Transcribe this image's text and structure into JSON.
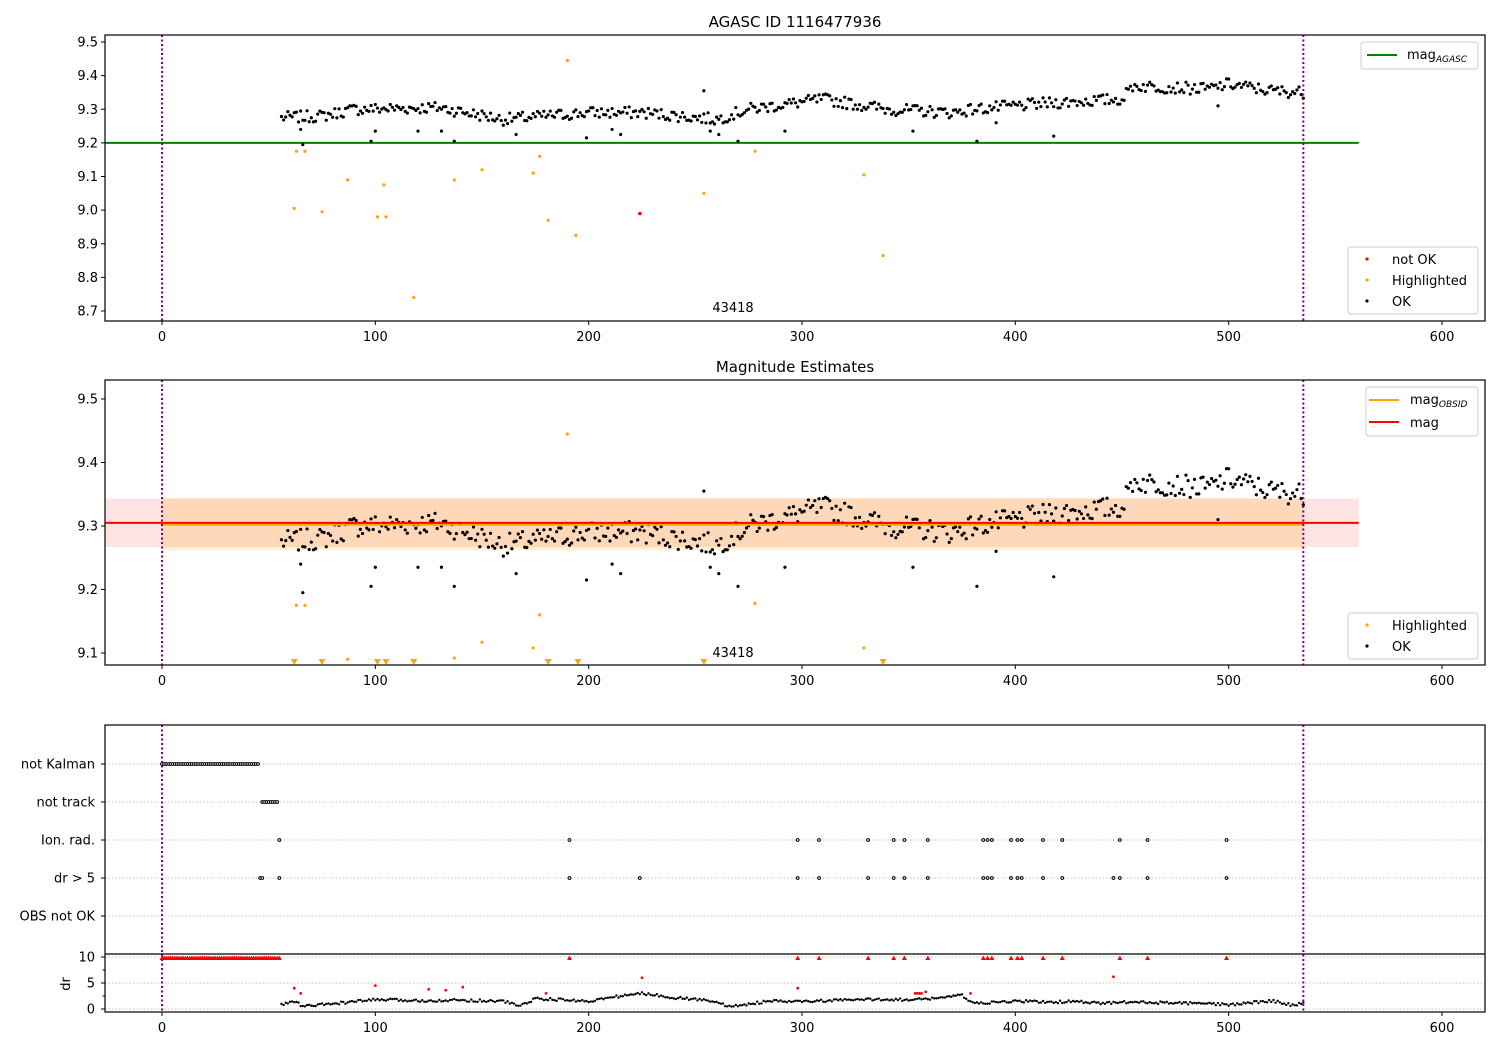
{
  "chart_data": [
    {
      "type": "scatter",
      "title": "AGASC ID 1116477936",
      "xlabel": "",
      "ylabel": "",
      "xlim": [
        -27,
        623
      ],
      "ylim": [
        8.67,
        9.52
      ],
      "xticks": [
        "0",
        "100",
        "200",
        "300",
        "400",
        "500",
        "600"
      ],
      "yticks": [
        "8.7",
        "8.8",
        "8.9",
        "9.0",
        "9.1",
        "9.2",
        "9.3",
        "9.4",
        "9.5"
      ],
      "annotation": "43418",
      "vlines": [
        0,
        535
      ],
      "hline": {
        "name": "mag_AGASC",
        "value": 9.2,
        "color": "#008000"
      },
      "legend_upper": [
        {
          "label": "mag",
          "sub": "AGASC",
          "color": "#008000",
          "kind": "line"
        }
      ],
      "legend_lower": [
        {
          "label": "not OK",
          "color": "#ff0000",
          "kind": "dot"
        },
        {
          "label": "Highlighted",
          "color": "#ffa500",
          "kind": "dot"
        },
        {
          "label": "OK",
          "color": "#000000",
          "kind": "dot"
        }
      ],
      "series": [
        {
          "name": "OK",
          "color": "#000000",
          "trend": [
            [
              56,
              9.275
            ],
            [
              75,
              9.28
            ],
            [
              90,
              9.3
            ],
            [
              130,
              9.305
            ],
            [
              160,
              9.27
            ],
            [
              200,
              9.29
            ],
            [
              225,
              9.29
            ],
            [
              260,
              9.27
            ],
            [
              275,
              9.3
            ],
            [
              310,
              9.33
            ],
            [
              340,
              9.3
            ],
            [
              370,
              9.29
            ],
            [
              380,
              9.3
            ],
            [
              420,
              9.32
            ],
            [
              450,
              9.33
            ],
            [
              455,
              9.37
            ],
            [
              490,
              9.36
            ],
            [
              500,
              9.375
            ],
            [
              520,
              9.355
            ],
            [
              535,
              9.35
            ]
          ],
          "outliers": [
            [
              65,
              9.24
            ],
            [
              66,
              9.195
            ],
            [
              98,
              9.205
            ],
            [
              100,
              9.235
            ],
            [
              120,
              9.235
            ],
            [
              137,
              9.205
            ],
            [
              131,
              9.235
            ],
            [
              166,
              9.225
            ],
            [
              199,
              9.215
            ],
            [
              215,
              9.225
            ],
            [
              211,
              9.24
            ],
            [
              254,
              9.355
            ],
            [
              257,
              9.235
            ],
            [
              261,
              9.225
            ],
            [
              270,
              9.205
            ],
            [
              292,
              9.235
            ],
            [
              352,
              9.235
            ],
            [
              382,
              9.205
            ],
            [
              391,
              9.26
            ],
            [
              418,
              9.22
            ],
            [
              495,
              9.31
            ]
          ]
        },
        {
          "name": "Highlighted",
          "color": "#ffa500",
          "points": [
            [
              62,
              9.005
            ],
            [
              63,
              9.175
            ],
            [
              67,
              9.175
            ],
            [
              75,
              8.995
            ],
            [
              87,
              9.09
            ],
            [
              101,
              8.98
            ],
            [
              105,
              8.98
            ],
            [
              104,
              9.075
            ],
            [
              118,
              8.74
            ],
            [
              137,
              9.09
            ],
            [
              150,
              9.12
            ],
            [
              174,
              9.11
            ],
            [
              177,
              9.16
            ],
            [
              181,
              8.97
            ],
            [
              190,
              9.445
            ],
            [
              194,
              8.925
            ],
            [
              254,
              9.05
            ],
            [
              278,
              9.175
            ],
            [
              329,
              9.105
            ],
            [
              338,
              8.865
            ]
          ]
        },
        {
          "name": "not OK",
          "color": "#ff0000",
          "points": [
            [
              224,
              8.99
            ]
          ]
        }
      ]
    },
    {
      "type": "scatter",
      "title": "Magnitude Estimates",
      "xlim": [
        -27,
        623
      ],
      "ylim": [
        9.08,
        9.53
      ],
      "xticks": [
        "0",
        "100",
        "200",
        "300",
        "400",
        "500",
        "600"
      ],
      "yticks": [
        "9.1",
        "9.2",
        "9.3",
        "9.4",
        "9.5"
      ],
      "annotation": "43418",
      "vlines": [
        0,
        535
      ],
      "mag": {
        "value": 9.305,
        "band": [
          9.267,
          9.343
        ],
        "color": "#ff0000"
      },
      "mag_obsid": {
        "value": 9.302,
        "band": [
          9.262,
          9.344
        ],
        "color": "#ffa500"
      },
      "legend_upper": [
        {
          "label": "mag",
          "sub": "OBSID",
          "color": "#ffa500",
          "kind": "line"
        },
        {
          "label": "mag",
          "sub": "",
          "color": "#ff0000",
          "kind": "line"
        }
      ],
      "legend_lower": [
        {
          "label": "Highlighted",
          "color": "#ffa500",
          "kind": "dot"
        },
        {
          "label": "OK",
          "color": "#000000",
          "kind": "dot"
        }
      ],
      "highlighted_below_axis_x": [
        62,
        75,
        101,
        105,
        118,
        181,
        195,
        254,
        338
      ],
      "highlighted_points": [
        [
          63,
          9.175
        ],
        [
          67,
          9.175
        ],
        [
          87,
          9.09
        ],
        [
          137,
          9.092
        ],
        [
          150,
          9.117
        ],
        [
          174,
          9.108
        ],
        [
          177,
          9.16
        ],
        [
          190,
          9.445
        ],
        [
          278,
          9.178
        ],
        [
          329,
          9.108
        ]
      ]
    },
    {
      "type": "scatter",
      "title": "",
      "xlim": [
        -27,
        623
      ],
      "categories": [
        "not Kalman",
        "not track",
        "Ion. rad.",
        "dr > 5",
        "OBS not OK"
      ],
      "flags": {
        "not Kalman": {
          "range": [
            0,
            45
          ]
        },
        "not track": {
          "range": [
            47,
            54
          ]
        },
        "Ion. rad.": {
          "points": [
            55,
            191,
            298,
            308,
            331,
            343,
            348,
            359,
            385,
            387,
            389,
            398,
            401,
            403,
            413,
            422,
            449,
            462,
            499
          ]
        },
        "dr > 5": {
          "points": [
            46,
            47,
            55,
            191,
            224,
            298,
            308,
            331,
            343,
            348,
            359,
            385,
            387,
            389,
            398,
            401,
            403,
            413,
            422,
            446,
            449,
            462,
            499
          ]
        },
        "OBS not OK": {
          "points": []
        }
      },
      "dr": {
        "ylabel": "dr",
        "yticks": [
          "0",
          "5",
          "10"
        ],
        "ylim": [
          -0.6,
          10.6
        ],
        "clipped_at_10_range": [
          0,
          55
        ],
        "clipped_at_10_points": [
          191,
          298,
          308,
          331,
          343,
          348,
          359,
          385,
          387,
          389,
          398,
          401,
          403,
          413,
          422,
          449,
          462,
          499
        ],
        "red_points": [
          [
            62,
            4
          ],
          [
            65,
            3
          ],
          [
            100,
            4.5
          ],
          [
            125,
            3.8
          ],
          [
            133,
            3.6
          ],
          [
            141,
            4.2
          ],
          [
            180,
            3
          ],
          [
            225,
            6
          ],
          [
            298,
            4
          ],
          [
            353,
            3
          ],
          [
            354,
            3
          ],
          [
            355,
            3
          ],
          [
            356,
            3
          ],
          [
            358,
            3.3
          ],
          [
            379,
            3
          ],
          [
            446,
            6.2
          ]
        ],
        "trend": [
          [
            56,
            0.8
          ],
          [
            62,
            1.5
          ],
          [
            66,
            0.5
          ],
          [
            80,
            1
          ],
          [
            100,
            1.8
          ],
          [
            120,
            1.6
          ],
          [
            140,
            1.7
          ],
          [
            160,
            1.5
          ],
          [
            168,
            0.6
          ],
          [
            175,
            2
          ],
          [
            200,
            1.5
          ],
          [
            215,
            2.5
          ],
          [
            225,
            3
          ],
          [
            240,
            2.2
          ],
          [
            260,
            1.5
          ],
          [
            265,
            0.4
          ],
          [
            285,
            1.5
          ],
          [
            298,
            1.4
          ],
          [
            320,
            1.7
          ],
          [
            340,
            1.9
          ],
          [
            352,
            1.7
          ],
          [
            375,
            2.6
          ],
          [
            381,
            1
          ],
          [
            400,
            1.5
          ],
          [
            420,
            1.3
          ],
          [
            425,
            1.5
          ],
          [
            440,
            1.1
          ],
          [
            452,
            1.3
          ],
          [
            470,
            1.2
          ],
          [
            490,
            1
          ],
          [
            500,
            0.8
          ],
          [
            520,
            1.6
          ],
          [
            530,
            0.7
          ],
          [
            535,
            1.2
          ]
        ]
      }
    }
  ]
}
